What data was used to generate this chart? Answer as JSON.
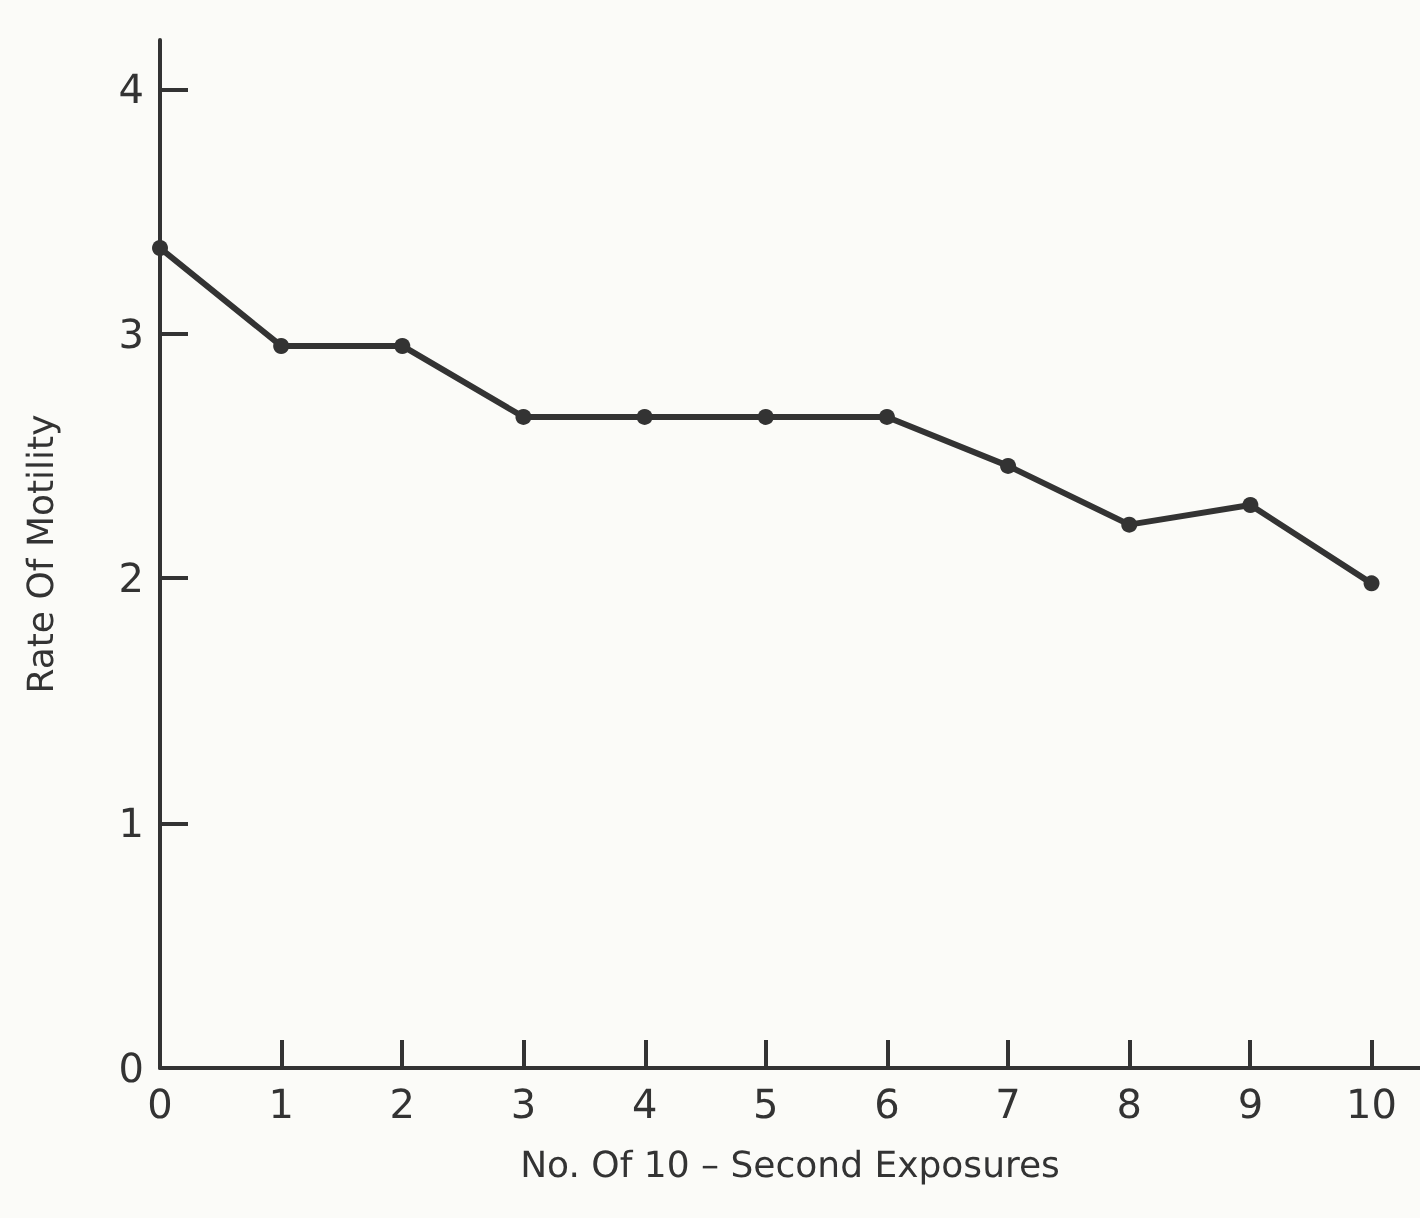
{
  "chart_data": {
    "type": "line",
    "xlabel": "No. Of 10 – Second Exposures",
    "ylabel": "Rate Of Motility",
    "x": [
      0,
      1,
      2,
      3,
      4,
      5,
      6,
      7,
      8,
      9,
      10
    ],
    "series": [
      {
        "color": "#333333",
        "values": [
          3.35,
          2.95,
          2.95,
          2.66,
          2.66,
          2.66,
          2.66,
          2.46,
          2.22,
          2.3,
          1.98
        ]
      }
    ],
    "xlim": [
      0,
      10.4
    ],
    "xticks": [
      0,
      1,
      2,
      3,
      4,
      5,
      6,
      7,
      8,
      9,
      10
    ],
    "ylim": [
      0,
      4.2
    ],
    "yticks": [
      0,
      1,
      2,
      3,
      4
    ],
    "grid": false,
    "marker": "circle",
    "line_style": "solid"
  }
}
